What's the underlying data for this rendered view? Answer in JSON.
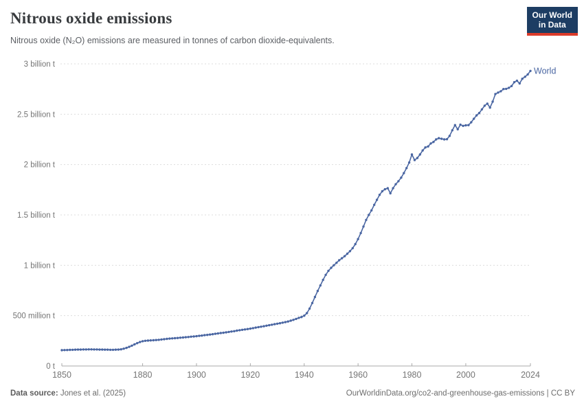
{
  "header": {
    "title": "Nitrous oxide emissions",
    "subtitle": "Nitrous oxide (N₂O) emissions are measured in tonnes of carbon dioxide-equivalents.",
    "logo": {
      "line1": "Our World",
      "line2": "in Data"
    }
  },
  "footer": {
    "source_label": "Data source:",
    "source_value": " Jones et al. (2025)",
    "attribution": "OurWorldinData.org/co2-and-greenhouse-gas-emissions | CC BY"
  },
  "colors": {
    "line": "#4a66a2",
    "gridline": "#dcdcdc",
    "axis": "#a8a8a8",
    "tick_text": "#757575",
    "logo_bg": "#1d3d63",
    "logo_accent": "#dc3b2a"
  },
  "chart_data": {
    "type": "line",
    "title": "Nitrous oxide emissions",
    "unit": "billion tonnes of CO₂-equivalents",
    "grid": "dashed-horizontal",
    "xlim": [
      1850,
      2024
    ],
    "ylim": [
      0,
      3
    ],
    "xticks": [
      {
        "value": 1850,
        "label": "1850"
      },
      {
        "value": 1880,
        "label": "1880"
      },
      {
        "value": 1900,
        "label": "1900"
      },
      {
        "value": 1920,
        "label": "1920"
      },
      {
        "value": 1940,
        "label": "1940"
      },
      {
        "value": 1960,
        "label": "1960"
      },
      {
        "value": 1980,
        "label": "1980"
      },
      {
        "value": 2000,
        "label": "2000"
      },
      {
        "value": 2024,
        "label": "2024"
      }
    ],
    "yticks": [
      {
        "value": 0,
        "label": "0 t"
      },
      {
        "value": 0.5,
        "label": "500 million t"
      },
      {
        "value": 1,
        "label": "1 billion t"
      },
      {
        "value": 1.5,
        "label": "1.5 billion t"
      },
      {
        "value": 2,
        "label": "2 billion t"
      },
      {
        "value": 2.5,
        "label": "2.5 billion t"
      },
      {
        "value": 3,
        "label": "3 billion t"
      }
    ],
    "series": [
      {
        "name": "World",
        "color": "#4a66a2",
        "x_start": 1850,
        "x_step": 1,
        "values_billion_t": [
          0.157,
          0.158,
          0.159,
          0.16,
          0.161,
          0.162,
          0.163,
          0.163,
          0.164,
          0.164,
          0.165,
          0.165,
          0.164,
          0.164,
          0.163,
          0.163,
          0.162,
          0.162,
          0.161,
          0.161,
          0.162,
          0.163,
          0.166,
          0.172,
          0.18,
          0.19,
          0.202,
          0.215,
          0.227,
          0.238,
          0.246,
          0.25,
          0.252,
          0.254,
          0.256,
          0.258,
          0.26,
          0.263,
          0.266,
          0.269,
          0.272,
          0.274,
          0.276,
          0.278,
          0.281,
          0.283,
          0.286,
          0.288,
          0.291,
          0.293,
          0.296,
          0.299,
          0.302,
          0.306,
          0.309,
          0.312,
          0.316,
          0.32,
          0.323,
          0.327,
          0.33,
          0.334,
          0.338,
          0.342,
          0.346,
          0.351,
          0.355,
          0.359,
          0.363,
          0.367,
          0.371,
          0.376,
          0.381,
          0.386,
          0.39,
          0.395,
          0.4,
          0.405,
          0.41,
          0.415,
          0.42,
          0.425,
          0.43,
          0.436,
          0.442,
          0.45,
          0.458,
          0.468,
          0.478,
          0.486,
          0.5,
          0.525,
          0.57,
          0.625,
          0.685,
          0.745,
          0.8,
          0.855,
          0.905,
          0.945,
          0.975,
          1.0,
          1.025,
          1.05,
          1.07,
          1.09,
          1.115,
          1.14,
          1.17,
          1.21,
          1.26,
          1.32,
          1.385,
          1.45,
          1.5,
          1.545,
          1.6,
          1.65,
          1.7,
          1.735,
          1.755,
          1.765,
          1.715,
          1.765,
          1.805,
          1.835,
          1.87,
          1.915,
          1.965,
          2.02,
          2.1,
          2.045,
          2.065,
          2.1,
          2.14,
          2.17,
          2.18,
          2.21,
          2.225,
          2.25,
          2.262,
          2.256,
          2.25,
          2.252,
          2.285,
          2.34,
          2.392,
          2.35,
          2.396,
          2.384,
          2.39,
          2.392,
          2.42,
          2.455,
          2.488,
          2.512,
          2.548,
          2.585,
          2.605,
          2.566,
          2.625,
          2.7,
          2.715,
          2.728,
          2.75,
          2.752,
          2.762,
          2.78,
          2.818,
          2.832,
          2.806,
          2.852,
          2.872,
          2.895,
          2.93
        ]
      }
    ],
    "end_label": "World"
  }
}
